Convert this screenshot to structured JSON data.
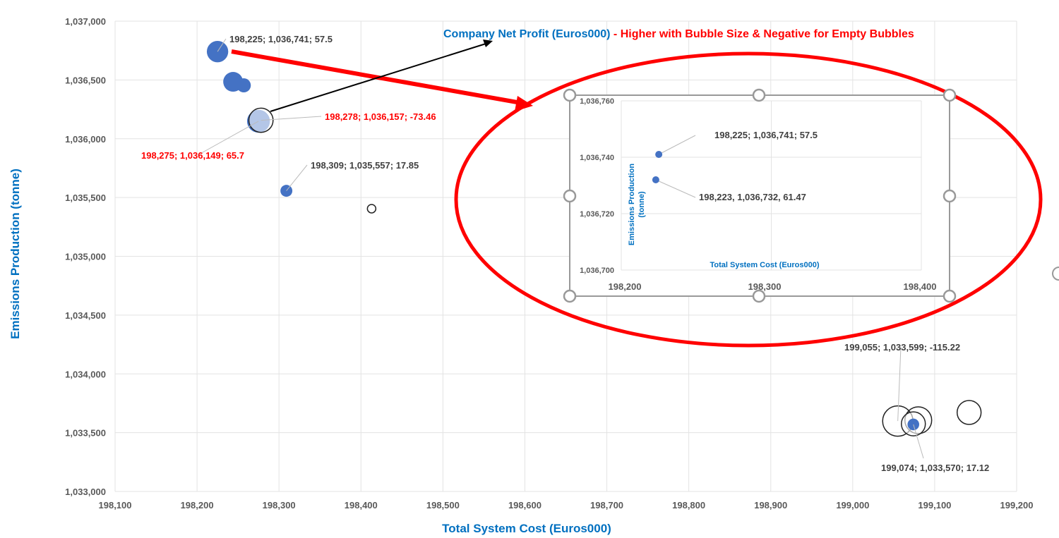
{
  "chart_data": {
    "type": "bubble",
    "xlabel": "Total System Cost (Euros000)",
    "ylabel": "Emissions Production (tonne)",
    "xlim": [
      198100,
      199200
    ],
    "ylim": [
      1033000,
      1037000
    ],
    "xticks": [
      "198,100",
      "198,200",
      "198,300",
      "198,400",
      "198,500",
      "198,600",
      "198,700",
      "198,800",
      "198,900",
      "199,000",
      "199,100",
      "199,200"
    ],
    "yticks": [
      "1,033,000",
      "1,033,500",
      "1,034,000",
      "1,034,500",
      "1,035,000",
      "1,035,500",
      "1,036,000",
      "1,036,500",
      "1,037,000"
    ],
    "grid": true,
    "bubble_color": "#4472C4",
    "points": [
      {
        "x": 198225,
        "y": 1036741,
        "size": 57.5,
        "label": "198,225; 1,036,741; 57.5",
        "label_color": "#404040"
      },
      {
        "x": 198244,
        "y": 1036484,
        "size": 49
      },
      {
        "x": 198257,
        "y": 1036454,
        "size": 25
      },
      {
        "x": 198275,
        "y": 1036149,
        "size": 65.7,
        "label": "198,275; 1,036,149; 65.7",
        "label_color": "#FF0000"
      },
      {
        "x": 198278,
        "y": 1036157,
        "size": -73.46,
        "label": "198,278; 1,036,157; -73.46",
        "label_color": "#FF0000"
      },
      {
        "x": 198309,
        "y": 1035557,
        "size": 17.85,
        "label": "198,309; 1,035,557; 17.85",
        "label_color": "#404040"
      },
      {
        "x": 198413,
        "y": 1035405,
        "size": -9
      },
      {
        "x": 199055,
        "y": 1033599,
        "size": -115.22,
        "label": "199,055; 1,033,599; -115.22",
        "label_color": "#404040"
      },
      {
        "x": 199080,
        "y": 1033606,
        "size": -90
      },
      {
        "x": 199074,
        "y": 1033575,
        "size": -72
      },
      {
        "x": 199074,
        "y": 1033570,
        "size": 17.12,
        "label": "199,074; 1,033,570; 17.12",
        "label_color": "#404040"
      },
      {
        "x": 199142,
        "y": 1033672,
        "size": -72
      }
    ],
    "annotation": {
      "title_blue": "Company Net Profit (Euros000)",
      "title_red": " - Higher with Bubble Size & Negative for Empty Bubbles"
    },
    "inset": {
      "xlabel": "Total System Cost (Euros000)",
      "ylabel_line1": "Emissions Production",
      "ylabel_line2": "(tonne)",
      "xlim": [
        198200,
        198400
      ],
      "ylim": [
        1036700,
        1036760
      ],
      "xticks": [
        "198,200",
        "198,300",
        "198,400"
      ],
      "yticks": [
        "1,036,700",
        "1,036,720",
        "1,036,740",
        "1,036,760"
      ],
      "points": [
        {
          "x": 198225,
          "y": 1036741,
          "label": "198,225; 1,036,741; 57.5"
        },
        {
          "x": 198223,
          "y": 1036732,
          "label": "198,223, 1,036,732, 61.47"
        }
      ]
    },
    "colors": {
      "axis_title": "#0070C0",
      "highlight": "#FF0000",
      "label": "#404040"
    }
  }
}
